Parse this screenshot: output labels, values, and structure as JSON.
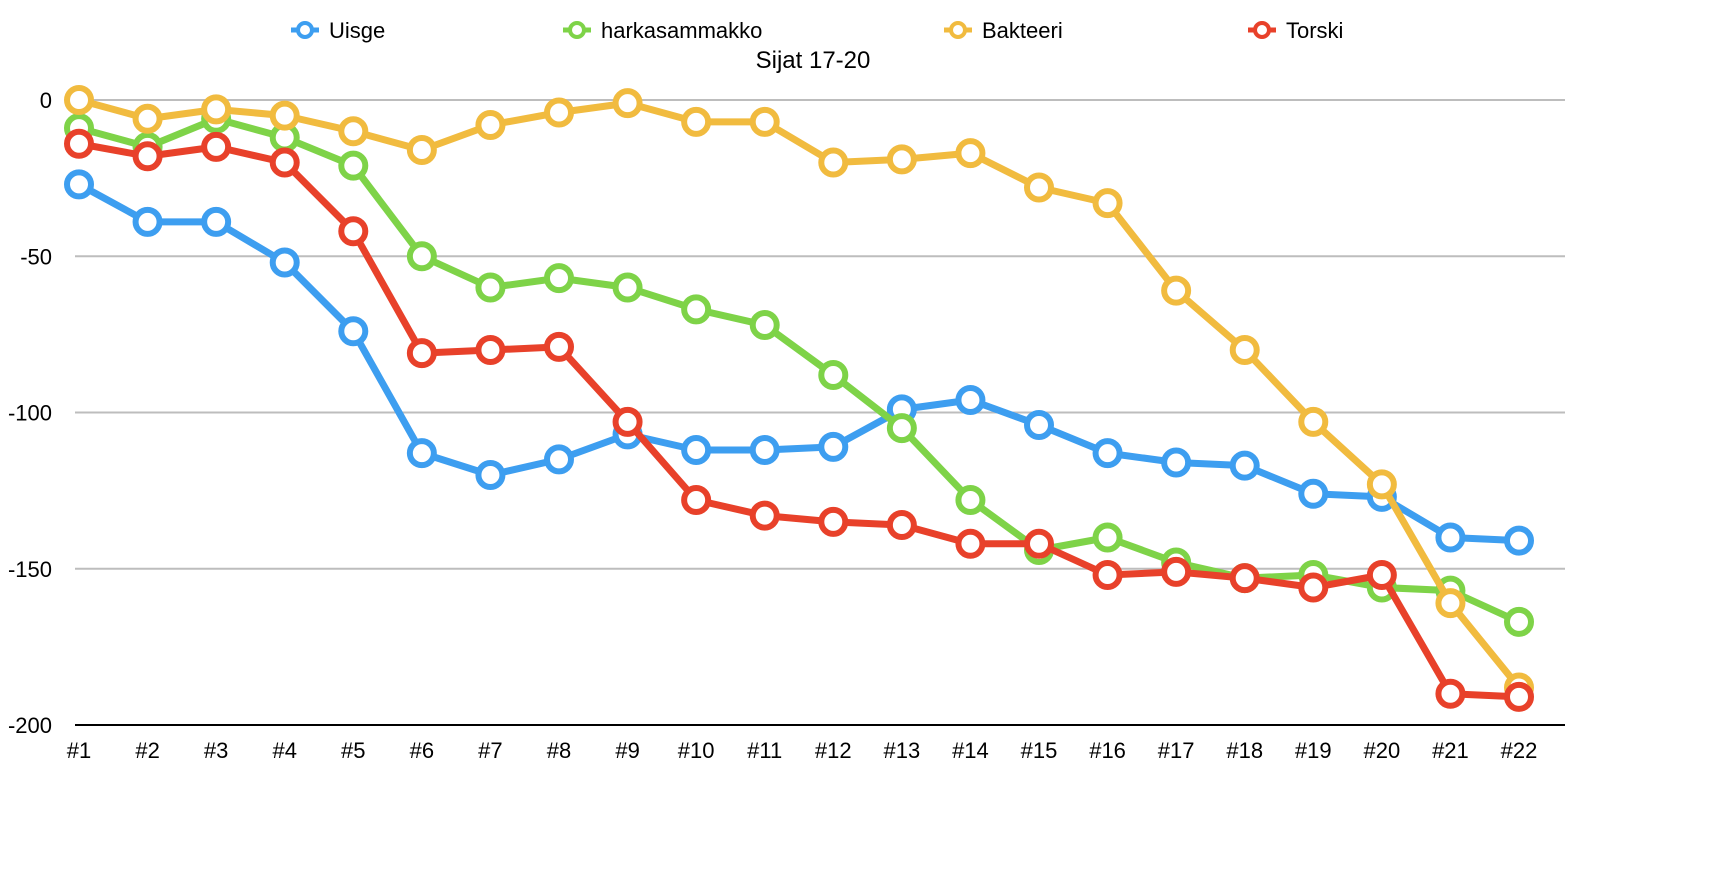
{
  "chart_data": {
    "type": "line",
    "title": "Sijat 17-20",
    "xlabel": "",
    "ylabel": "",
    "ylim": [
      -200,
      0
    ],
    "yticks": [
      0,
      -50,
      -100,
      -150,
      -200
    ],
    "ytick_labels": [
      "0",
      "-50",
      "-100",
      "-150",
      "-200"
    ],
    "grid": true,
    "legend_position": "top",
    "categories": [
      "#1",
      "#2",
      "#3",
      "#4",
      "#5",
      "#6",
      "#7",
      "#8",
      "#9",
      "#10",
      "#11",
      "#12",
      "#13",
      "#14",
      "#15",
      "#16",
      "#17",
      "#18",
      "#19",
      "#20",
      "#21",
      "#22"
    ],
    "series": [
      {
        "name": "Uisge",
        "color": "#3d9ef0",
        "values": [
          -27,
          -39,
          -39,
          -52,
          -74,
          -113,
          -120,
          -115,
          -107,
          -112,
          -112,
          -111,
          -99,
          -96,
          -104,
          -113,
          -116,
          -117,
          -126,
          -127,
          -140,
          -141
        ]
      },
      {
        "name": "harkasammakko",
        "color": "#7ed348",
        "values": [
          -9,
          -15,
          -6,
          -12,
          -21,
          -50,
          -60,
          -57,
          -60,
          -67,
          -72,
          -88,
          -105,
          -128,
          -144,
          -140,
          -148,
          -153,
          -152,
          -156,
          -157,
          -167
        ]
      },
      {
        "name": "Bakteeri",
        "color": "#f1bb3f",
        "values": [
          0,
          -6,
          -3,
          -5,
          -10,
          -16,
          -8,
          -4,
          -1,
          -7,
          -7,
          -20,
          -19,
          -17,
          -28,
          -33,
          -61,
          -80,
          -103,
          -123,
          -161,
          -188
        ]
      },
      {
        "name": "Torski",
        "color": "#e8412a",
        "values": [
          -14,
          -18,
          -15,
          -20,
          -42,
          -81,
          -80,
          -79,
          -103,
          -128,
          -133,
          -135,
          -136,
          -142,
          -142,
          -152,
          -151,
          -153,
          -156,
          -152,
          -190,
          -191
        ]
      }
    ]
  }
}
